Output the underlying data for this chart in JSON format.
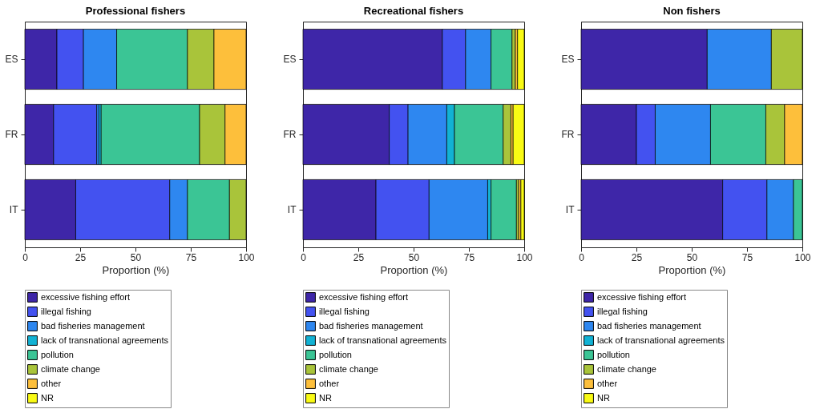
{
  "chart_data": [
    {
      "type": "bar",
      "title": "Professional fishers",
      "xlabel": "Proportion (%)",
      "orientation": "horizontal",
      "stacked": true,
      "categories": [
        "ES",
        "FR",
        "IT"
      ],
      "xlim": [
        0,
        100
      ],
      "xticks": [
        0,
        25,
        50,
        75,
        100
      ],
      "grid": false,
      "legend": "bottom",
      "series": [
        {
          "name": "excessive fishing effort",
          "color": "#3e26a8",
          "values": [
            14.5,
            13,
            23
          ]
        },
        {
          "name": "illegal fishing",
          "color": "#4352f0",
          "values": [
            12,
            19.5,
            42.5
          ]
        },
        {
          "name": "bad fisheries management",
          "color": "#2e87f0",
          "values": [
            15,
            1,
            8
          ]
        },
        {
          "name": "lack of transnational agreements",
          "color": "#12b2d4",
          "values": [
            0,
            1,
            0
          ]
        },
        {
          "name": "pollution",
          "color": "#3bc595",
          "values": [
            32,
            44.5,
            19
          ]
        },
        {
          "name": "climate change",
          "color": "#a9c43a",
          "values": [
            12,
            11.5,
            7.5
          ]
        },
        {
          "name": "other",
          "color": "#fdbf3b",
          "values": [
            14.5,
            9.5,
            0
          ]
        },
        {
          "name": "NR",
          "color": "#f9fa14",
          "values": [
            0,
            0,
            0
          ]
        }
      ]
    },
    {
      "type": "bar",
      "title": "Recreational fishers",
      "xlabel": "Proportion (%)",
      "orientation": "horizontal",
      "stacked": true,
      "categories": [
        "ES",
        "FR",
        "IT"
      ],
      "xlim": [
        0,
        100
      ],
      "xticks": [
        0,
        25,
        50,
        75,
        100
      ],
      "grid": false,
      "legend": "bottom",
      "series": [
        {
          "name": "excessive fishing effort",
          "color": "#3e26a8",
          "values": [
            63,
            39,
            33
          ]
        },
        {
          "name": "illegal fishing",
          "color": "#4352f0",
          "values": [
            10.5,
            8.5,
            24
          ]
        },
        {
          "name": "bad fisheries management",
          "color": "#2e87f0",
          "values": [
            11.5,
            17.5,
            26.5
          ]
        },
        {
          "name": "lack of transnational agreements",
          "color": "#12b2d4",
          "values": [
            0,
            3.5,
            1.5
          ]
        },
        {
          "name": "pollution",
          "color": "#3bc595",
          "values": [
            9.5,
            22,
            11.5
          ]
        },
        {
          "name": "climate change",
          "color": "#a9c43a",
          "values": [
            1.5,
            3.5,
            1
          ]
        },
        {
          "name": "other",
          "color": "#fdbf3b",
          "values": [
            1,
            1,
            1
          ]
        },
        {
          "name": "NR",
          "color": "#f9fa14",
          "values": [
            3,
            5,
            1.5
          ]
        }
      ]
    },
    {
      "type": "bar",
      "title": "Non fishers",
      "xlabel": "Proportion (%)",
      "orientation": "horizontal",
      "stacked": true,
      "categories": [
        "ES",
        "FR",
        "IT"
      ],
      "xlim": [
        0,
        100
      ],
      "xticks": [
        0,
        25,
        50,
        75,
        100
      ],
      "grid": false,
      "legend": "bottom",
      "series": [
        {
          "name": "excessive fishing effort",
          "color": "#3e26a8",
          "values": [
            57,
            25,
            64
          ]
        },
        {
          "name": "illegal fishing",
          "color": "#4352f0",
          "values": [
            0,
            8.5,
            20
          ]
        },
        {
          "name": "bad fisheries management",
          "color": "#2e87f0",
          "values": [
            29,
            25,
            12
          ]
        },
        {
          "name": "lack of transnational agreements",
          "color": "#12b2d4",
          "values": [
            0,
            0,
            0
          ]
        },
        {
          "name": "pollution",
          "color": "#3bc595",
          "values": [
            0,
            25,
            4
          ]
        },
        {
          "name": "climate change",
          "color": "#a9c43a",
          "values": [
            14,
            8.5,
            0
          ]
        },
        {
          "name": "other",
          "color": "#fdbf3b",
          "values": [
            0,
            8,
            0
          ]
        },
        {
          "name": "NR",
          "color": "#f9fa14",
          "values": [
            0,
            0,
            0
          ]
        }
      ]
    }
  ]
}
